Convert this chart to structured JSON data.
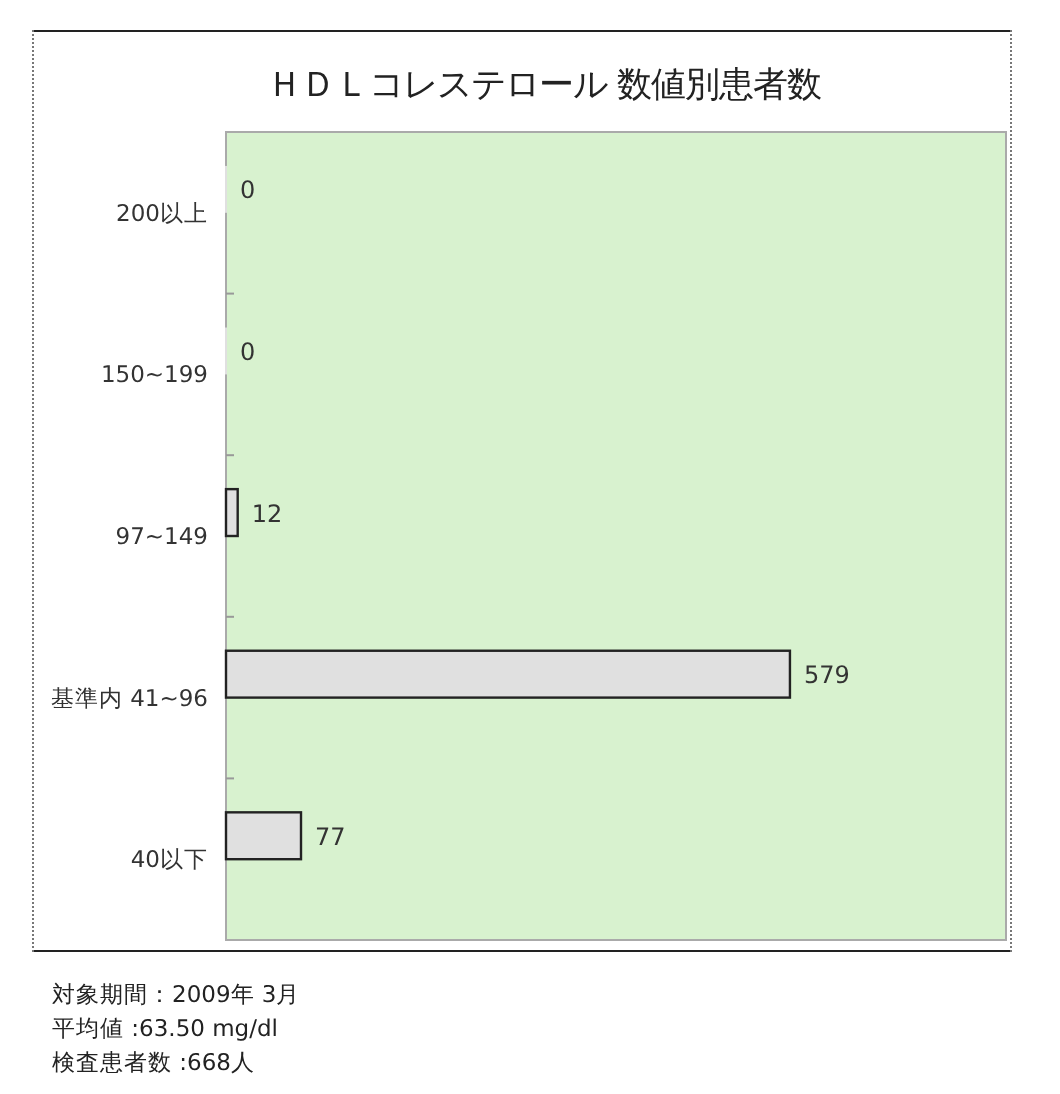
{
  "chart_data": {
    "type": "bar",
    "orientation": "horizontal",
    "title": "ＨＤＬコレステロール 数値別患者数",
    "categories": [
      "200以上",
      "150~199",
      "97~149",
      "基準内 41~96",
      "40以下"
    ],
    "values": [
      0,
      0,
      12,
      579,
      77
    ],
    "color": "#e0e0e0",
    "data_labels": true,
    "annotations": [
      "対象期間：2009年 3月",
      "平均値 :63.50 mg/dl",
      "検査患者数 :668人"
    ]
  }
}
